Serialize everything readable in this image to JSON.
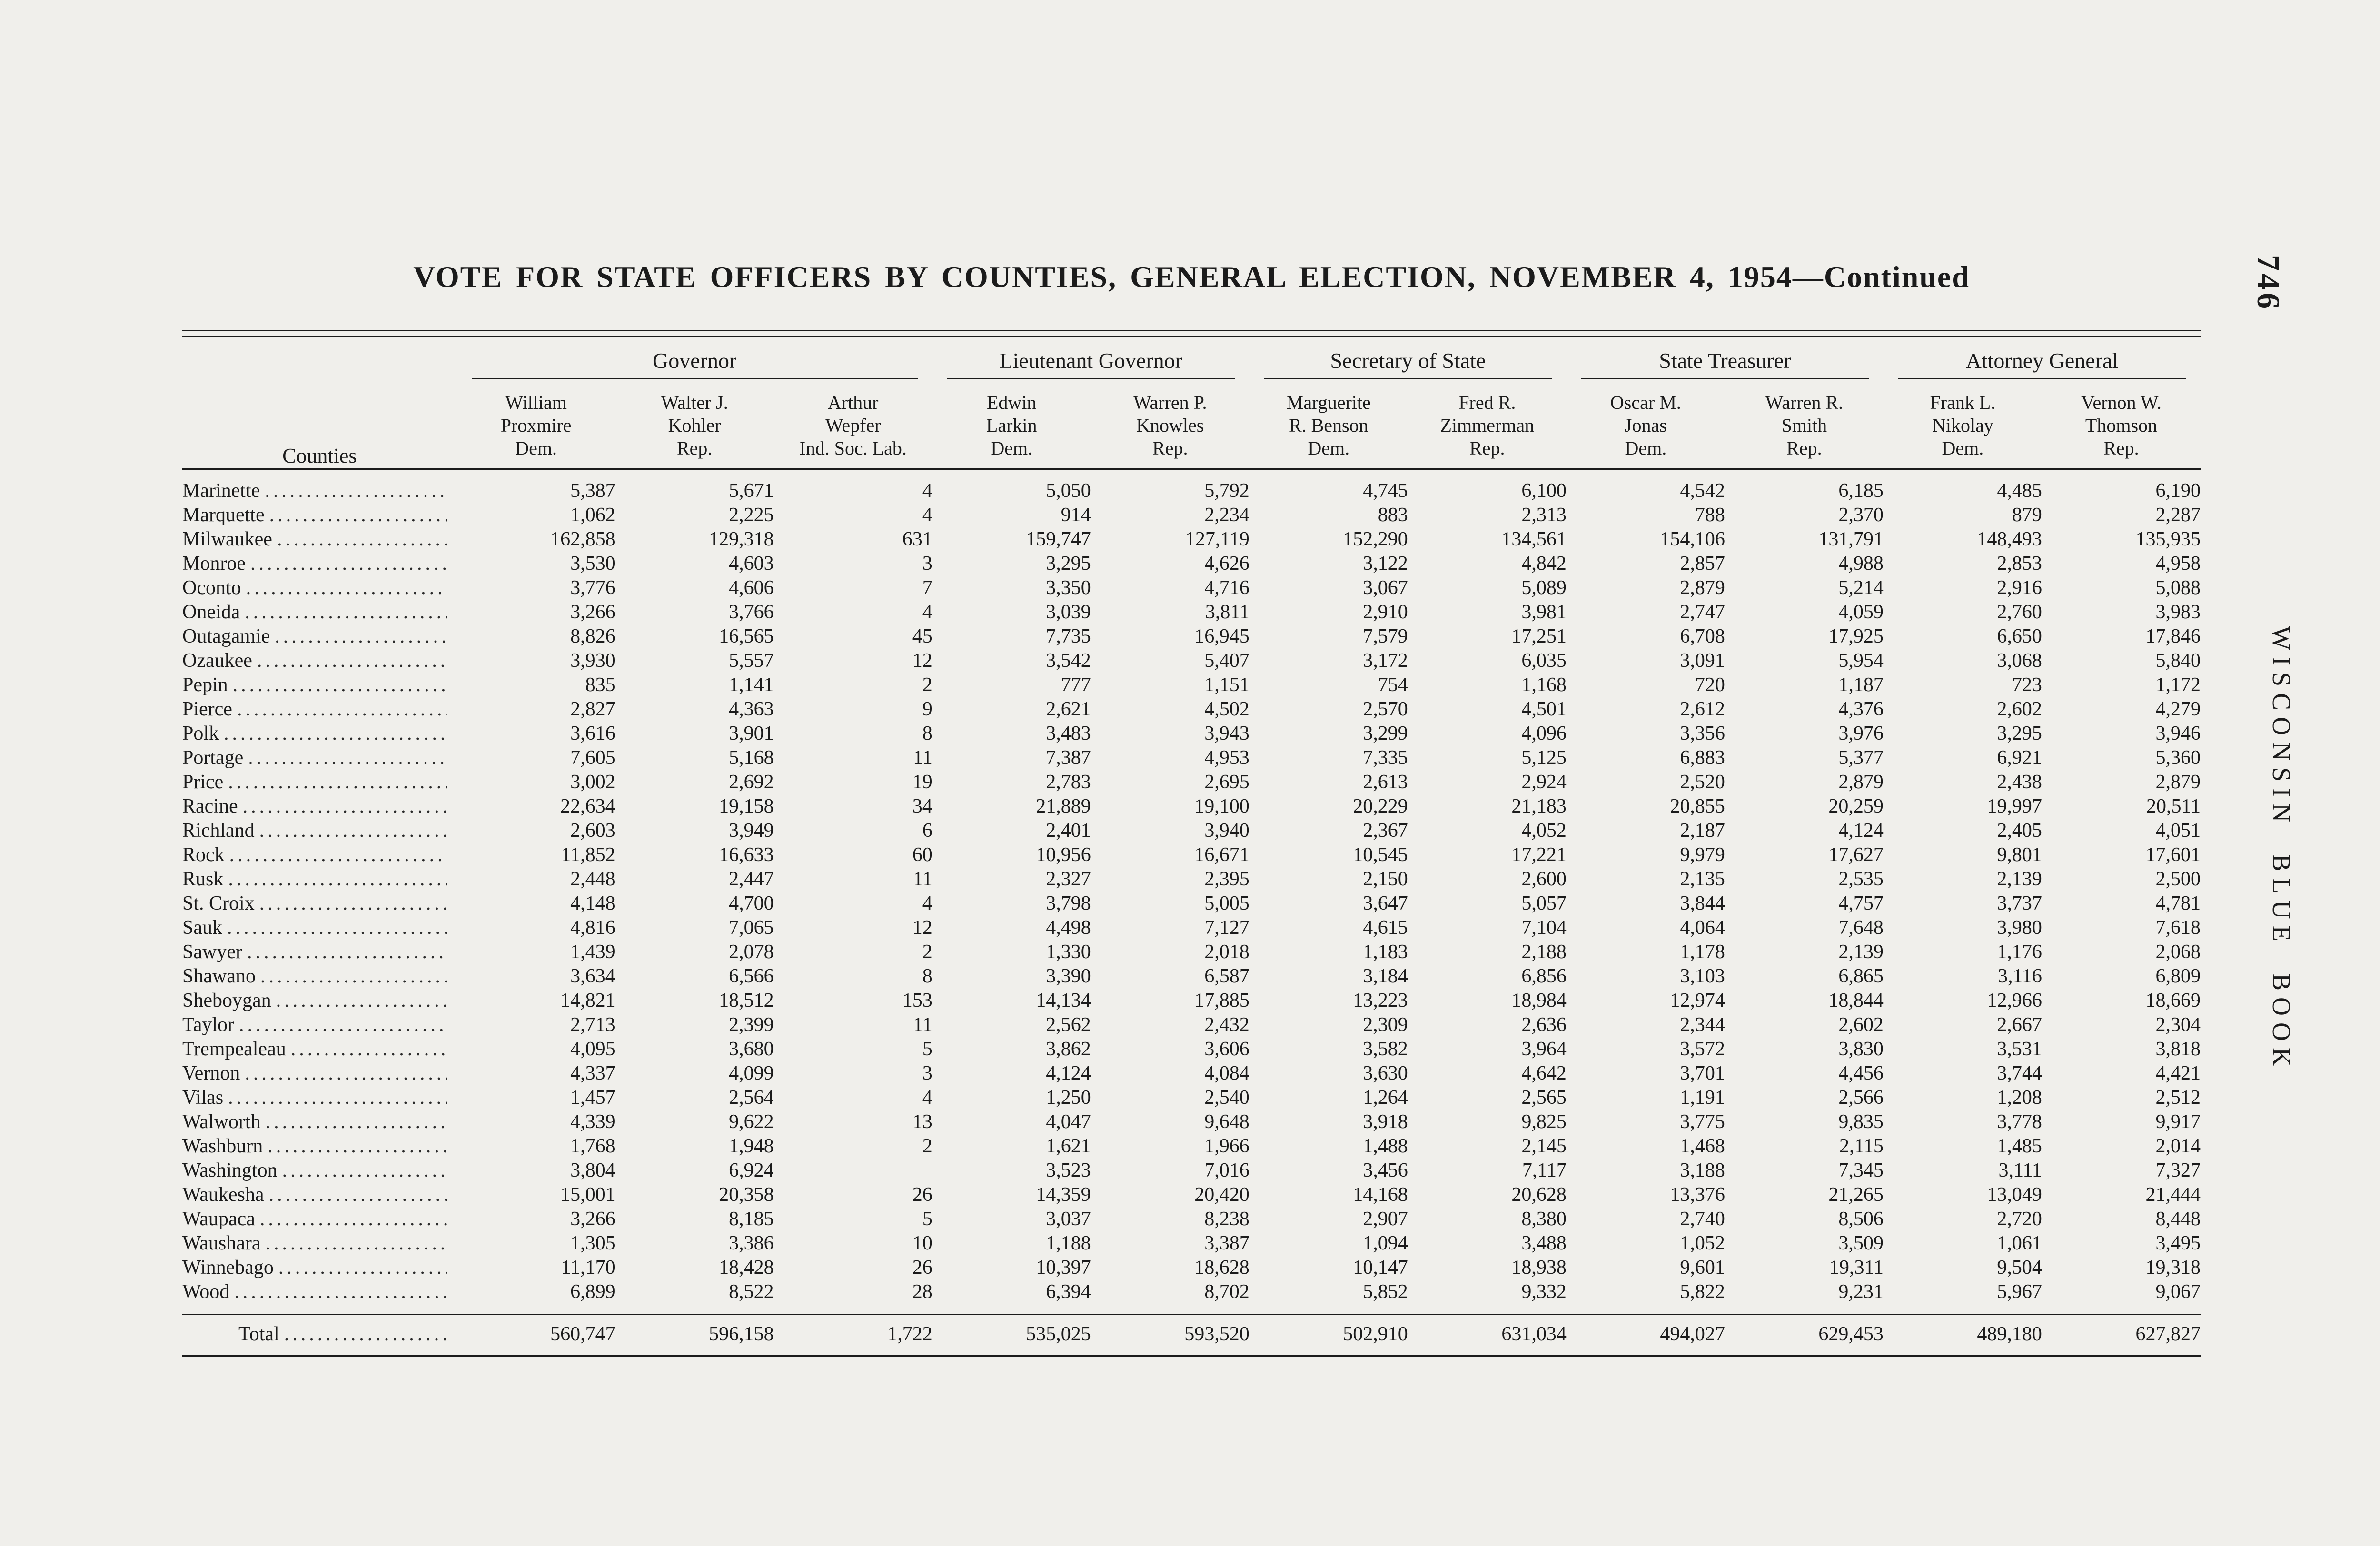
{
  "page": {
    "title": "VOTE FOR STATE OFFICERS BY COUNTIES, GENERAL ELECTION, NOVEMBER 4, 1954—Continued",
    "page_number": "746",
    "spine_title": "WISCONSIN BLUE BOOK"
  },
  "table": {
    "counties_header": "Counties",
    "groups": [
      {
        "label": "Governor",
        "span": 3
      },
      {
        "label": "Lieutenant Governor",
        "span": 2
      },
      {
        "label": "Secretary of State",
        "span": 2
      },
      {
        "label": "State Treasurer",
        "span": 2
      },
      {
        "label": "Attorney General",
        "span": 2
      }
    ],
    "candidates": [
      {
        "name": [
          "William",
          "Proxmire"
        ],
        "party": "Dem."
      },
      {
        "name": [
          "Walter J.",
          "Kohler"
        ],
        "party": "Rep."
      },
      {
        "name": [
          "Arthur",
          "Wepfer"
        ],
        "party": "Ind. Soc. Lab."
      },
      {
        "name": [
          "Edwin",
          "Larkin"
        ],
        "party": "Dem."
      },
      {
        "name": [
          "Warren P.",
          "Knowles"
        ],
        "party": "Rep."
      },
      {
        "name": [
          "Marguerite",
          "R. Benson"
        ],
        "party": "Dem."
      },
      {
        "name": [
          "Fred R.",
          "Zimmerman"
        ],
        "party": "Rep."
      },
      {
        "name": [
          "Oscar M.",
          "Jonas"
        ],
        "party": "Dem."
      },
      {
        "name": [
          "Warren R.",
          "Smith"
        ],
        "party": "Rep."
      },
      {
        "name": [
          "Frank L.",
          "Nikolay"
        ],
        "party": "Dem."
      },
      {
        "name": [
          "Vernon W.",
          "Thomson"
        ],
        "party": "Rep."
      }
    ],
    "rows": [
      {
        "county": "Marinette",
        "values": [
          "5,387",
          "5,671",
          "4",
          "5,050",
          "5,792",
          "4,745",
          "6,100",
          "4,542",
          "6,185",
          "4,485",
          "6,190"
        ]
      },
      {
        "county": "Marquette",
        "values": [
          "1,062",
          "2,225",
          "4",
          "914",
          "2,234",
          "883",
          "2,313",
          "788",
          "2,370",
          "879",
          "2,287"
        ]
      },
      {
        "county": "Milwaukee",
        "values": [
          "162,858",
          "129,318",
          "631",
          "159,747",
          "127,119",
          "152,290",
          "134,561",
          "154,106",
          "131,791",
          "148,493",
          "135,935"
        ]
      },
      {
        "county": "Monroe",
        "values": [
          "3,530",
          "4,603",
          "3",
          "3,295",
          "4,626",
          "3,122",
          "4,842",
          "2,857",
          "4,988",
          "2,853",
          "4,958"
        ]
      },
      {
        "county": "Oconto",
        "values": [
          "3,776",
          "4,606",
          "7",
          "3,350",
          "4,716",
          "3,067",
          "5,089",
          "2,879",
          "5,214",
          "2,916",
          "5,088"
        ]
      },
      {
        "county": "Oneida",
        "values": [
          "3,266",
          "3,766",
          "4",
          "3,039",
          "3,811",
          "2,910",
          "3,981",
          "2,747",
          "4,059",
          "2,760",
          "3,983"
        ]
      },
      {
        "county": "Outagamie",
        "values": [
          "8,826",
          "16,565",
          "45",
          "7,735",
          "16,945",
          "7,579",
          "17,251",
          "6,708",
          "17,925",
          "6,650",
          "17,846"
        ]
      },
      {
        "county": "Ozaukee",
        "values": [
          "3,930",
          "5,557",
          "12",
          "3,542",
          "5,407",
          "3,172",
          "6,035",
          "3,091",
          "5,954",
          "3,068",
          "5,840"
        ]
      },
      {
        "county": "Pepin",
        "values": [
          "835",
          "1,141",
          "2",
          "777",
          "1,151",
          "754",
          "1,168",
          "720",
          "1,187",
          "723",
          "1,172"
        ]
      },
      {
        "county": "Pierce",
        "values": [
          "2,827",
          "4,363",
          "9",
          "2,621",
          "4,502",
          "2,570",
          "4,501",
          "2,612",
          "4,376",
          "2,602",
          "4,279"
        ]
      },
      {
        "county": "Polk",
        "values": [
          "3,616",
          "3,901",
          "8",
          "3,483",
          "3,943",
          "3,299",
          "4,096",
          "3,356",
          "3,976",
          "3,295",
          "3,946"
        ]
      },
      {
        "county": "Portage",
        "values": [
          "7,605",
          "5,168",
          "11",
          "7,387",
          "4,953",
          "7,335",
          "5,125",
          "6,883",
          "5,377",
          "6,921",
          "5,360"
        ]
      },
      {
        "county": "Price",
        "values": [
          "3,002",
          "2,692",
          "19",
          "2,783",
          "2,695",
          "2,613",
          "2,924",
          "2,520",
          "2,879",
          "2,438",
          "2,879"
        ]
      },
      {
        "county": "Racine",
        "values": [
          "22,634",
          "19,158",
          "34",
          "21,889",
          "19,100",
          "20,229",
          "21,183",
          "20,855",
          "20,259",
          "19,997",
          "20,511"
        ]
      },
      {
        "county": "Richland",
        "values": [
          "2,603",
          "3,949",
          "6",
          "2,401",
          "3,940",
          "2,367",
          "4,052",
          "2,187",
          "4,124",
          "2,405",
          "4,051"
        ]
      },
      {
        "county": "Rock",
        "values": [
          "11,852",
          "16,633",
          "60",
          "10,956",
          "16,671",
          "10,545",
          "17,221",
          "9,979",
          "17,627",
          "9,801",
          "17,601"
        ]
      },
      {
        "county": "Rusk",
        "values": [
          "2,448",
          "2,447",
          "11",
          "2,327",
          "2,395",
          "2,150",
          "2,600",
          "2,135",
          "2,535",
          "2,139",
          "2,500"
        ]
      },
      {
        "county": "St. Croix",
        "values": [
          "4,148",
          "4,700",
          "4",
          "3,798",
          "5,005",
          "3,647",
          "5,057",
          "3,844",
          "4,757",
          "3,737",
          "4,781"
        ]
      },
      {
        "county": "Sauk",
        "values": [
          "4,816",
          "7,065",
          "12",
          "4,498",
          "7,127",
          "4,615",
          "7,104",
          "4,064",
          "7,648",
          "3,980",
          "7,618"
        ]
      },
      {
        "county": "Sawyer",
        "values": [
          "1,439",
          "2,078",
          "2",
          "1,330",
          "2,018",
          "1,183",
          "2,188",
          "1,178",
          "2,139",
          "1,176",
          "2,068"
        ]
      },
      {
        "county": "Shawano",
        "values": [
          "3,634",
          "6,566",
          "8",
          "3,390",
          "6,587",
          "3,184",
          "6,856",
          "3,103",
          "6,865",
          "3,116",
          "6,809"
        ]
      },
      {
        "county": "Sheboygan",
        "values": [
          "14,821",
          "18,512",
          "153",
          "14,134",
          "17,885",
          "13,223",
          "18,984",
          "12,974",
          "18,844",
          "12,966",
          "18,669"
        ]
      },
      {
        "county": "Taylor",
        "values": [
          "2,713",
          "2,399",
          "11",
          "2,562",
          "2,432",
          "2,309",
          "2,636",
          "2,344",
          "2,602",
          "2,667",
          "2,304"
        ]
      },
      {
        "county": "Trempealeau",
        "values": [
          "4,095",
          "3,680",
          "5",
          "3,862",
          "3,606",
          "3,582",
          "3,964",
          "3,572",
          "3,830",
          "3,531",
          "3,818"
        ]
      },
      {
        "county": "Vernon",
        "values": [
          "4,337",
          "4,099",
          "3",
          "4,124",
          "4,084",
          "3,630",
          "4,642",
          "3,701",
          "4,456",
          "3,744",
          "4,421"
        ]
      },
      {
        "county": "Vilas",
        "values": [
          "1,457",
          "2,564",
          "4",
          "1,250",
          "2,540",
          "1,264",
          "2,565",
          "1,191",
          "2,566",
          "1,208",
          "2,512"
        ]
      },
      {
        "county": "Walworth",
        "values": [
          "4,339",
          "9,622",
          "13",
          "4,047",
          "9,648",
          "3,918",
          "9,825",
          "3,775",
          "9,835",
          "3,778",
          "9,917"
        ]
      },
      {
        "county": "Washburn",
        "values": [
          "1,768",
          "1,948",
          "2",
          "1,621",
          "1,966",
          "1,488",
          "2,145",
          "1,468",
          "2,115",
          "1,485",
          "2,014"
        ]
      },
      {
        "county": "Washington",
        "values": [
          "3,804",
          "6,924",
          "",
          "3,523",
          "7,016",
          "3,456",
          "7,117",
          "3,188",
          "7,345",
          "3,111",
          "7,327"
        ]
      },
      {
        "county": "Waukesha",
        "values": [
          "15,001",
          "20,358",
          "26",
          "14,359",
          "20,420",
          "14,168",
          "20,628",
          "13,376",
          "21,265",
          "13,049",
          "21,444"
        ]
      },
      {
        "county": "Waupaca",
        "values": [
          "3,266",
          "8,185",
          "5",
          "3,037",
          "8,238",
          "2,907",
          "8,380",
          "2,740",
          "8,506",
          "2,720",
          "8,448"
        ]
      },
      {
        "county": "Waushara",
        "values": [
          "1,305",
          "3,386",
          "10",
          "1,188",
          "3,387",
          "1,094",
          "3,488",
          "1,052",
          "3,509",
          "1,061",
          "3,495"
        ]
      },
      {
        "county": "Winnebago",
        "values": [
          "11,170",
          "18,428",
          "26",
          "10,397",
          "18,628",
          "10,147",
          "18,938",
          "9,601",
          "19,311",
          "9,504",
          "19,318"
        ]
      },
      {
        "county": "Wood",
        "values": [
          "6,899",
          "8,522",
          "28",
          "6,394",
          "8,702",
          "5,852",
          "9,332",
          "5,822",
          "9,231",
          "5,967",
          "9,067"
        ]
      }
    ],
    "total": {
      "label": "Total",
      "values": [
        "560,747",
        "596,158",
        "1,722",
        "535,025",
        "593,520",
        "502,910",
        "631,034",
        "494,027",
        "629,453",
        "489,180",
        "627,827"
      ]
    }
  }
}
